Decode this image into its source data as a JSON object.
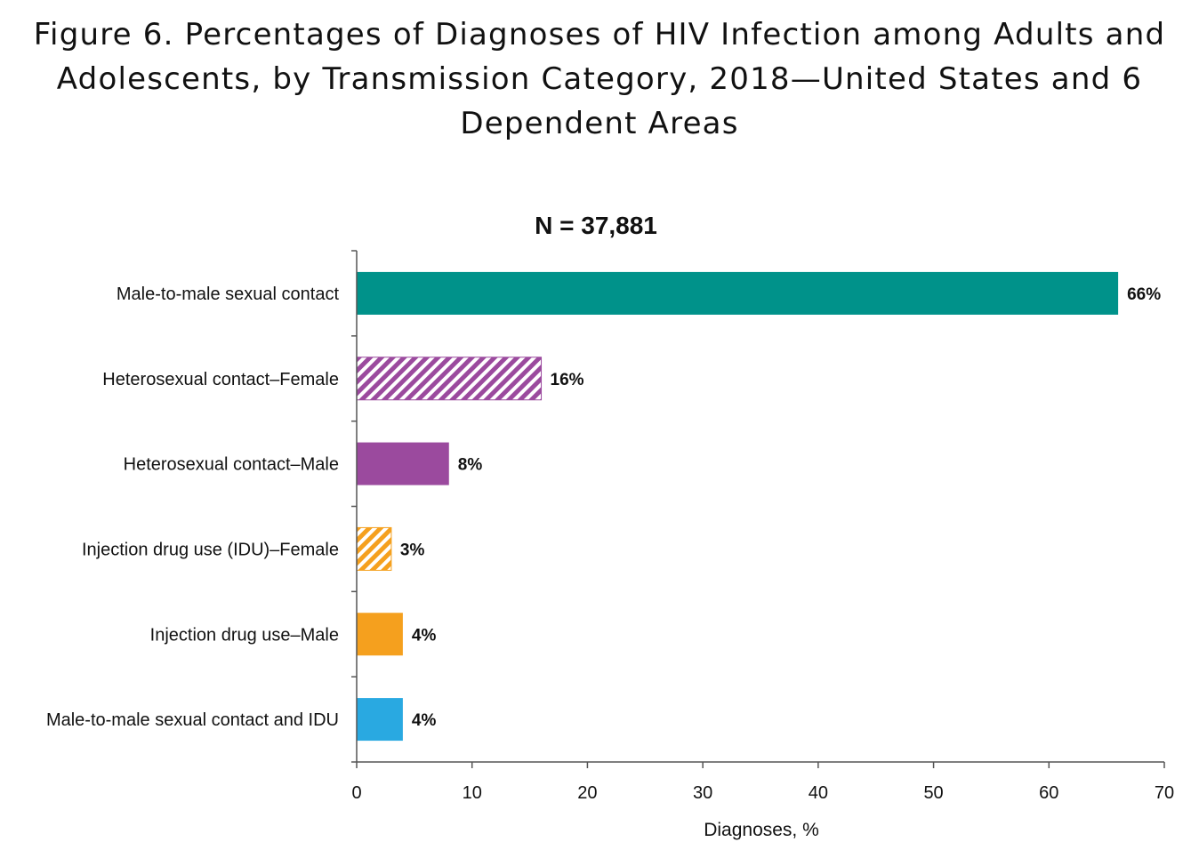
{
  "title": "Figure 6. Percentages of Diagnoses of HIV Infection among Adults and Adolescents, by Transmission Category, 2018—United States and 6 Dependent Areas",
  "chart_data": {
    "type": "bar",
    "orientation": "horizontal",
    "subtitle": "N = 37,881",
    "xlabel": "Diagnoses, %",
    "ylabel": "",
    "xlim": [
      0,
      70
    ],
    "xticks": [
      0,
      10,
      20,
      30,
      40,
      50,
      60,
      70
    ],
    "grid": false,
    "categories": [
      "Male-to-male sexual contact",
      "Heterosexual contact–Female",
      "Heterosexual contact–Male",
      "Injection drug use (IDU)–Female",
      "Injection drug use–Male",
      "Male-to-male sexual contact and IDU"
    ],
    "values": [
      66,
      16,
      8,
      3,
      4,
      4
    ],
    "value_labels": [
      "66%",
      "16%",
      "8%",
      "3%",
      "4%",
      "4%"
    ],
    "colors": [
      "#00928a",
      "#9b4a9e",
      "#9b4a9e",
      "#f5a01e",
      "#f5a01e",
      "#29a9e1"
    ],
    "hatched": [
      false,
      true,
      false,
      true,
      false,
      false
    ]
  }
}
